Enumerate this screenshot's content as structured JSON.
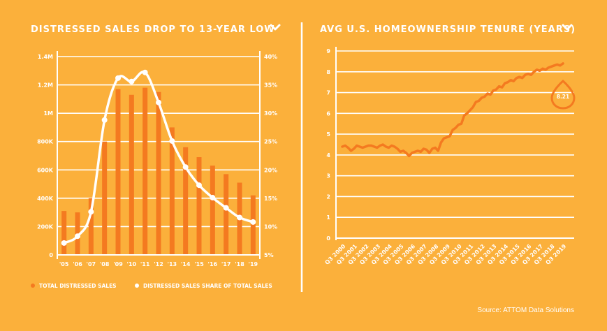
{
  "colors": {
    "background": "#FBB03B",
    "bar": "#F47A20",
    "line_white": "#FFFFFF",
    "tenure_line": "#F47A20"
  },
  "source": "Source: ATTOM Data Solutions",
  "chart_data": [
    {
      "type": "bar",
      "title": "DISTRESSED SALES DROP TO 13-YEAR LOW",
      "dropdown_icon": "chevron-down-icon",
      "categories": [
        "'05",
        "'06",
        "'07",
        "'08",
        "'09",
        "'10",
        "'11",
        "'12",
        "'13",
        "'14",
        "'15",
        "'16",
        "'17",
        "'18",
        "'19"
      ],
      "y_left_ticks": [
        "0",
        "200K",
        "400K",
        "600K",
        "800K",
        "1M",
        "1.2M",
        "1.4M"
      ],
      "y_left_lim": [
        0,
        1400000
      ],
      "y_right_ticks": [
        "5%",
        "10%",
        "15%",
        "20%",
        "25%",
        "30%",
        "35%",
        "40%"
      ],
      "y_right_lim": [
        5,
        40
      ],
      "series": [
        {
          "name": "TOTAL DISTRESSED SALES",
          "type": "bar",
          "axis": "left",
          "values": [
            310000,
            300000,
            400000,
            800000,
            1170000,
            1130000,
            1180000,
            1150000,
            900000,
            760000,
            690000,
            630000,
            570000,
            510000,
            420000
          ]
        },
        {
          "name": "DISTRESSED SALES SHARE OF TOTAL SALES",
          "type": "line",
          "axis": "right",
          "values": [
            7.1,
            8.3,
            12.6,
            28.8,
            36.2,
            35.6,
            37.2,
            31.9,
            25.1,
            20.5,
            17.3,
            15.1,
            13.3,
            11.6,
            10.8
          ]
        }
      ],
      "grid": true,
      "legend_position": "bottom"
    },
    {
      "type": "line",
      "title": "AVG U.S. HOMEOWNERSHIP TENURE (YEARS)",
      "dropdown_icon": "chevron-down-icon",
      "y_ticks": [
        "0",
        "1",
        "2",
        "3",
        "4",
        "5",
        "6",
        "7",
        "8",
        "9"
      ],
      "ylim": [
        0,
        9
      ],
      "x_labels": [
        "Q3 2000",
        "Q3 2001",
        "Q3 2002",
        "Q3 2003",
        "Q3 2004",
        "Q3 2005",
        "Q3 2006",
        "Q3 2007",
        "Q3 2008",
        "Q3 2009",
        "Q3 2010",
        "Q3 2011",
        "Q3 2012",
        "Q3 2013",
        "Q3 2014",
        "Q3 2015",
        "Q3 2016",
        "Q3 2017",
        "Q3 2018",
        "Q3 2019"
      ],
      "series": [
        {
          "name": "",
          "values": [
            4.4,
            4.45,
            4.35,
            4.2,
            4.3,
            4.45,
            4.4,
            4.35,
            4.4,
            4.45,
            4.45,
            4.4,
            4.35,
            4.45,
            4.5,
            4.4,
            4.35,
            4.45,
            4.4,
            4.3,
            4.15,
            4.2,
            4.1,
            3.95,
            4.1,
            4.15,
            4.2,
            4.15,
            4.3,
            4.25,
            4.1,
            4.3,
            4.35,
            4.2,
            4.6,
            4.8,
            4.85,
            4.9,
            5.2,
            5.3,
            5.45,
            5.5,
            5.9,
            6.0,
            6.15,
            6.3,
            6.55,
            6.6,
            6.75,
            6.8,
            6.95,
            6.9,
            7.1,
            7.15,
            7.3,
            7.25,
            7.45,
            7.5,
            7.6,
            7.55,
            7.7,
            7.75,
            7.7,
            7.85,
            7.9,
            7.85,
            8.0,
            8.1,
            8.05,
            8.15,
            8.1,
            8.2,
            8.25,
            8.3,
            8.35,
            8.3,
            8.4
          ]
        }
      ],
      "annotation": {
        "label": "8.21",
        "icon": "water-drop-icon"
      },
      "grid": true
    }
  ]
}
